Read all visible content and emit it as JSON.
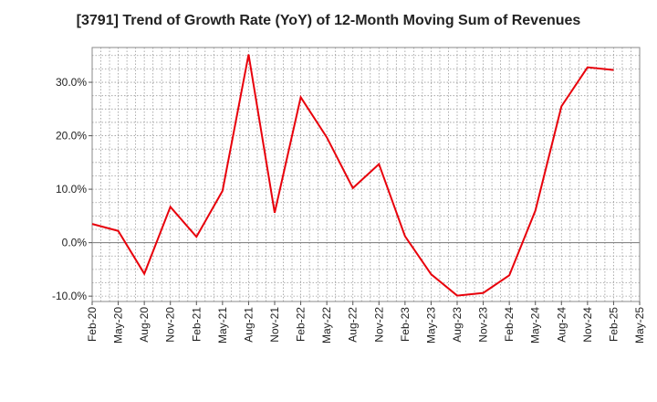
{
  "chart_data": {
    "type": "line",
    "title": "[3791]  Trend of Growth Rate (YoY) of 12-Month Moving Sum of Revenues",
    "xlabel": "",
    "ylabel": "",
    "x_ticks": [
      "Feb-20",
      "May-20",
      "Aug-20",
      "Nov-20",
      "Feb-21",
      "May-21",
      "Aug-21",
      "Nov-21",
      "Feb-22",
      "May-22",
      "Aug-22",
      "Nov-22",
      "Feb-23",
      "May-23",
      "Aug-23",
      "Nov-23",
      "Feb-24",
      "May-24",
      "Aug-24",
      "Nov-24",
      "Feb-25",
      "May-25"
    ],
    "y_ticks": [
      -10,
      0,
      10,
      20,
      30
    ],
    "y_tick_labels": [
      "-10.0%",
      "0.0%",
      "10.0%",
      "20.0%",
      "30.0%"
    ],
    "ylim": [
      -11,
      36.5
    ],
    "grid": true,
    "line_color": "#e8000b",
    "series": [
      {
        "x": [
          "Feb-20",
          "May-20",
          "Aug-20",
          "Nov-20",
          "Feb-21",
          "May-21",
          "Aug-21",
          "Nov-21",
          "Feb-22",
          "May-22",
          "Aug-22",
          "Nov-22",
          "Feb-23",
          "May-23",
          "Aug-23",
          "Nov-23",
          "Feb-24",
          "May-24",
          "Aug-24",
          "Nov-24",
          "Feb-25"
        ],
        "values": [
          3.5,
          2.2,
          -5.8,
          6.7,
          1.1,
          9.7,
          35.2,
          5.6,
          27.2,
          19.7,
          10.2,
          14.7,
          1.2,
          -5.9,
          -9.9,
          -9.4,
          -6.1,
          6.0,
          25.5,
          32.8,
          32.3
        ]
      }
    ]
  }
}
